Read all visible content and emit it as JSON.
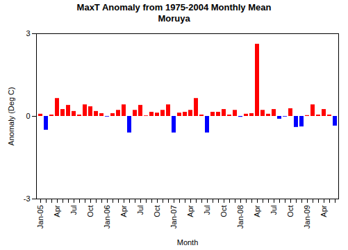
{
  "chart_data": {
    "type": "bar",
    "title": "MaxT Anomaly from 1975-2004 Monthly Mean",
    "subtitle": "Moruya",
    "x_label": "Month",
    "y_label": "Anomaly (Deg C)",
    "categories": [
      "Jan-05",
      null,
      null,
      "Apr",
      null,
      null,
      "Jul",
      null,
      null,
      "Oct",
      null,
      null,
      "Jan-06",
      null,
      null,
      "Apr",
      null,
      null,
      "Jul",
      null,
      null,
      "Oct",
      null,
      null,
      "Jan-07",
      null,
      null,
      "Apr",
      null,
      null,
      "Jul",
      null,
      null,
      "Oct",
      null,
      null,
      "Jan-08",
      null,
      null,
      "Apr",
      null,
      null,
      "Jul",
      null,
      null,
      "Oct",
      null,
      null,
      "Jan-09",
      null,
      null,
      "Apr",
      null,
      null
    ],
    "values": [
      0.08,
      -0.5,
      0.05,
      0.65,
      0.25,
      0.4,
      0.18,
      0.05,
      0.42,
      0.35,
      0.18,
      0.1,
      -0.02,
      0.1,
      0.22,
      0.42,
      -0.6,
      0.22,
      0.4,
      0.02,
      0.15,
      0.12,
      0.22,
      0.42,
      -0.6,
      0.12,
      0.15,
      0.22,
      0.65,
      0.05,
      -0.6,
      0.15,
      0.15,
      0.25,
      0.05,
      0.22,
      -0.03,
      0.08,
      0.1,
      2.62,
      0.22,
      0.08,
      0.25,
      -0.1,
      -0.02,
      0.28,
      -0.4,
      -0.38,
      0.03,
      0.42,
      0.05,
      0.25,
      0.05,
      -0.35
    ],
    "colors": [
      "red",
      "blue",
      "red",
      "red",
      "red",
      "red",
      "red",
      "red",
      "red",
      "red",
      "red",
      "red",
      "blue",
      "red",
      "red",
      "red",
      "blue",
      "red",
      "red",
      "red",
      "red",
      "red",
      "red",
      "red",
      "blue",
      "red",
      "red",
      "red",
      "red",
      "red",
      "blue",
      "red",
      "red",
      "red",
      "red",
      "red",
      "blue",
      "red",
      "red",
      "red",
      "red",
      "red",
      "red",
      "blue",
      "blue",
      "red",
      "blue",
      "blue",
      "red",
      "red",
      "red",
      "red",
      "red",
      "blue"
    ],
    "ylim": [
      -3,
      3
    ],
    "yticks": [
      -3,
      0,
      3
    ],
    "grid": false
  }
}
